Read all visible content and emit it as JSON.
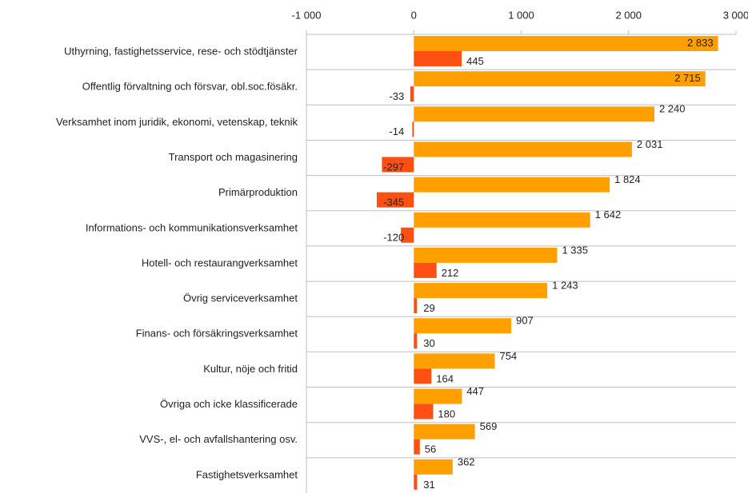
{
  "chart_data": {
    "type": "bar",
    "orientation": "horizontal",
    "categories": [
      "Uthyrning, fastighetsservice, rese- och stödtjänster",
      "Offentlig förvaltning och försvar, obl.soc.fösäkr.",
      "Verksamhet inom juridik, ekonomi, vetenskap, teknik",
      "Transport och magasinering",
      "Primärproduktion",
      "Informations- och kommunikationsverksamhet",
      "Hotell- och restaurangverksamhet",
      "Övrig serviceverksamhet",
      "Finans- och försäkringsverksamhet",
      "Kultur, nöje och fritid",
      "Övriga och icke klassificerade",
      "VVS-, el- och avfallshantering osv.",
      "Fastighetsverksamhet"
    ],
    "series": [
      {
        "color": "#ffa000",
        "values": [
          2833,
          2715,
          2240,
          2031,
          1824,
          1642,
          1335,
          1243,
          907,
          754,
          447,
          569,
          362
        ],
        "value_labels": [
          "2 833",
          "2 715",
          "2 240",
          "2 031",
          "1 824",
          "1 642",
          "1 335",
          "1 243",
          "907",
          "754",
          "447",
          "569",
          "362"
        ]
      },
      {
        "color": "#ff5014",
        "values": [
          445,
          -33,
          -14,
          -297,
          -345,
          -120,
          212,
          29,
          30,
          164,
          180,
          56,
          31
        ],
        "value_labels": [
          "445",
          "-33",
          "-14",
          "-297",
          "-345",
          "-120",
          "212",
          "29",
          "30",
          "164",
          "180",
          "56",
          "31"
        ]
      }
    ],
    "xlim": [
      -1000,
      3000
    ],
    "xticks": [
      {
        "value": -1000,
        "label": "-1 000"
      },
      0,
      {
        "value": 1000,
        "label": "1 000"
      },
      {
        "value": 2000,
        "label": "2 000"
      },
      {
        "value": 3000,
        "label": "3 000"
      }
    ]
  }
}
